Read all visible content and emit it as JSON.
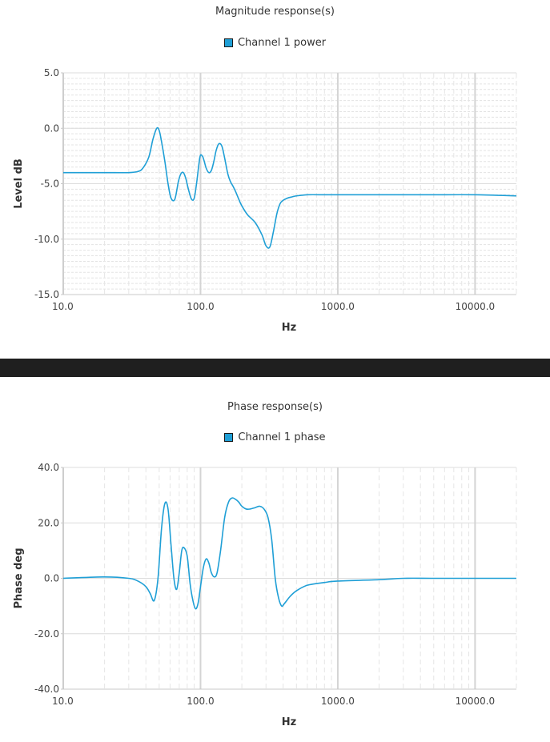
{
  "chart_data": [
    {
      "type": "line",
      "title": "Magnitude response(s)",
      "xlabel": "Hz",
      "ylabel": "Level dB",
      "xscale": "log",
      "xlim": [
        10,
        20000
      ],
      "ylim": [
        -15,
        5
      ],
      "x_ticks": [
        10,
        100,
        1000,
        10000
      ],
      "x_tick_labels": [
        "10.0",
        "100.0",
        "1000.0",
        "10000.0"
      ],
      "y_ticks": [
        -15,
        -10,
        -5,
        0,
        5
      ],
      "y_tick_labels": [
        "-15.0",
        "-10.0",
        "-5.0",
        "0.0",
        "5.0"
      ],
      "grid": true,
      "legend_position": "top-center",
      "series": [
        {
          "name": "Channel 1 power",
          "color": "#1f9fd6",
          "x": [
            10,
            20,
            30,
            35,
            38,
            42,
            45,
            48,
            50,
            52,
            55,
            58,
            61,
            65,
            69,
            72,
            75,
            78,
            82,
            86,
            90,
            94,
            99,
            103,
            106,
            110,
            115,
            120,
            125,
            130,
            136,
            143,
            150,
            158,
            165,
            172,
            180,
            190,
            200,
            220,
            250,
            280,
            300,
            320,
            340,
            360,
            380,
            400,
            430,
            460,
            500,
            600,
            800,
            1000,
            2000,
            3000,
            5000,
            10000,
            20000
          ],
          "y": [
            -4.0,
            -4.0,
            -4.0,
            -3.9,
            -3.6,
            -2.6,
            -1.0,
            0.0,
            -0.2,
            -1.2,
            -3.0,
            -5.0,
            -6.3,
            -6.4,
            -4.8,
            -4.1,
            -4.0,
            -4.5,
            -5.6,
            -6.4,
            -6.3,
            -4.8,
            -2.6,
            -2.5,
            -2.9,
            -3.6,
            -4.0,
            -3.8,
            -3.0,
            -2.0,
            -1.4,
            -1.6,
            -2.7,
            -4.1,
            -4.8,
            -5.2,
            -5.7,
            -6.4,
            -7.0,
            -7.8,
            -8.5,
            -9.6,
            -10.6,
            -10.7,
            -9.3,
            -7.7,
            -6.8,
            -6.5,
            -6.3,
            -6.2,
            -6.1,
            -6.0,
            -6.0,
            -6.0,
            -6.0,
            -6.0,
            -6.0,
            -6.0,
            -6.1
          ]
        }
      ]
    },
    {
      "type": "line",
      "title": "Phase response(s)",
      "xlabel": "Hz",
      "ylabel": "Phase deg",
      "xscale": "log",
      "xlim": [
        10,
        20000
      ],
      "ylim": [
        -40,
        40
      ],
      "x_ticks": [
        10,
        100,
        1000,
        10000
      ],
      "x_tick_labels": [
        "10.0",
        "100.0",
        "1000.0",
        "10000.0"
      ],
      "y_ticks": [
        -40,
        -20,
        0,
        20,
        40
      ],
      "y_tick_labels": [
        "-40.0",
        "-20.0",
        "0.0",
        "20.0",
        "40.0"
      ],
      "grid": true,
      "legend_position": "top-center",
      "series": [
        {
          "name": "Channel 1 phase",
          "color": "#1f9fd6",
          "x": [
            10,
            20,
            30,
            35,
            40,
            43,
            46,
            49,
            52,
            55,
            58,
            61,
            64,
            67,
            70,
            73,
            76,
            80,
            84,
            88,
            92,
            96,
            100,
            105,
            110,
            115,
            120,
            126,
            132,
            140,
            150,
            160,
            170,
            180,
            190,
            200,
            215,
            230,
            250,
            270,
            290,
            310,
            330,
            350,
            370,
            390,
            410,
            450,
            500,
            600,
            800,
            1000,
            2000,
            3000,
            5000,
            10000,
            20000
          ],
          "y": [
            0,
            0.5,
            0.0,
            -1.0,
            -3.0,
            -5.5,
            -8.0,
            0.0,
            18.0,
            27.0,
            25.0,
            12.0,
            0.0,
            -4.0,
            2.0,
            10.0,
            11.0,
            8.0,
            -2.0,
            -8.0,
            -11.0,
            -9.0,
            -3.0,
            4.0,
            7.0,
            5.5,
            2.0,
            0.5,
            2.0,
            10.0,
            22.0,
            27.5,
            29.0,
            28.5,
            27.5,
            26.0,
            25.0,
            25.0,
            25.5,
            26.0,
            25.0,
            22.0,
            14.0,
            0.0,
            -7.0,
            -10.0,
            -9.0,
            -6.5,
            -4.5,
            -2.5,
            -1.5,
            -1.0,
            -0.5,
            0.0,
            0.0,
            0.0,
            0.0
          ]
        }
      ]
    }
  ]
}
